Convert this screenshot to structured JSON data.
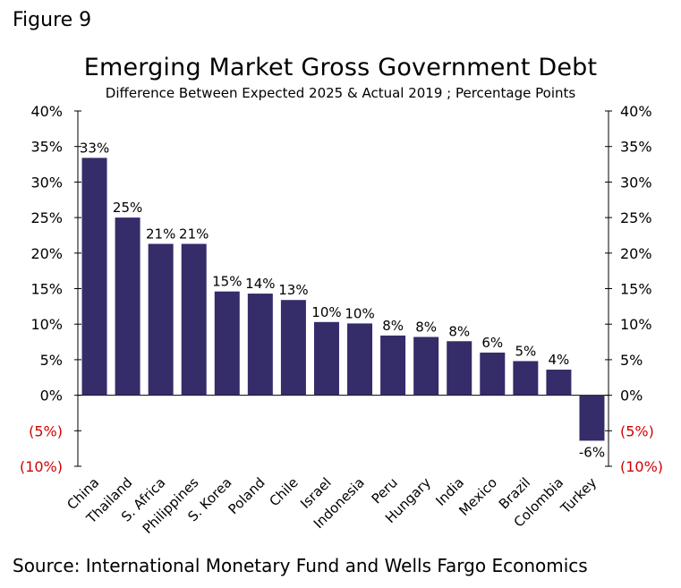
{
  "figure_label": "Figure 9",
  "source": "Source: International Monetary Fund and Wells Fargo Economics",
  "colors": {
    "bar": "#352c6a",
    "negative_label": "#d20000",
    "axis": "#000000"
  },
  "chart_data": {
    "type": "bar",
    "title": "Emerging Market Gross Government Debt",
    "subtitle": "Difference Between Expected 2025 & Actual 2019 ; Percentage Points",
    "categories": [
      "China",
      "Thailand",
      "S. Africa",
      "Philippines",
      "S. Korea",
      "Poland",
      "Chile",
      "Israel",
      "Indonesia",
      "Peru",
      "Hungary",
      "India",
      "Mexico",
      "Brazil",
      "Colombia",
      "Turkey"
    ],
    "values": [
      33.4,
      25.0,
      21.3,
      21.3,
      14.6,
      14.3,
      13.4,
      10.3,
      10.1,
      8.4,
      8.2,
      7.6,
      6.0,
      4.8,
      3.6,
      -6.4
    ],
    "data_labels": [
      "33%",
      "25%",
      "21%",
      "21%",
      "15%",
      "14%",
      "13%",
      "10%",
      "10%",
      "8%",
      "8%",
      "8%",
      "6%",
      "5%",
      "4%",
      "-6%"
    ],
    "ylim": [
      -10,
      40
    ],
    "yticks": [
      40,
      35,
      30,
      25,
      20,
      15,
      10,
      5,
      0,
      -5,
      -10
    ],
    "ytick_labels": [
      "40%",
      "35%",
      "30%",
      "25%",
      "20%",
      "15%",
      "10%",
      "5%",
      "0%",
      "(5%)",
      "(10%)"
    ],
    "xlabel": "",
    "ylabel": "",
    "grid": false,
    "legend": "none"
  }
}
